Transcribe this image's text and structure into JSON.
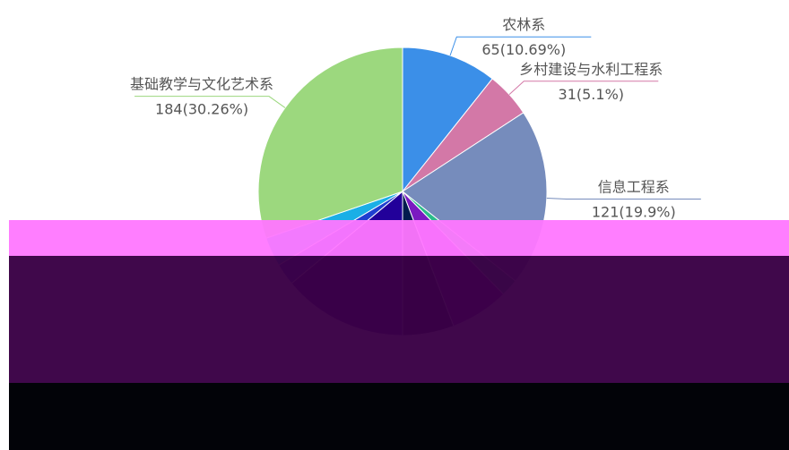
{
  "chart_data": {
    "type": "pie",
    "title": "",
    "legend": "none",
    "slices": [
      {
        "name": "农林系",
        "value": 65,
        "percent": "10.69%",
        "color": "#3b8fe8"
      },
      {
        "name": "乡村建设与水利工程系",
        "value": 31,
        "percent": "5.1%",
        "color": "#d378a7"
      },
      {
        "name": "信息工程系",
        "value": 121,
        "percent": "19.9%",
        "color": "#768cbc"
      },
      {
        "name": "",
        "value": 12,
        "percent": "",
        "color": "#2bbd8a"
      },
      {
        "name": "",
        "value": 40,
        "percent": "",
        "color": "#7a1ac0"
      },
      {
        "name": "",
        "value": 35,
        "percent": "",
        "color": "#021b4f"
      },
      {
        "name": "",
        "value": 85,
        "percent": "",
        "color": "#22009a"
      },
      {
        "name": "",
        "value": 15,
        "percent": "",
        "color": "#1f3fd0"
      },
      {
        "name": "",
        "value": 20,
        "percent": "",
        "color": "#1aafe6"
      },
      {
        "name": "基础教学与文化艺术系",
        "value": 184,
        "percent": "30.26%",
        "color": "#9cd87e"
      }
    ]
  }
}
